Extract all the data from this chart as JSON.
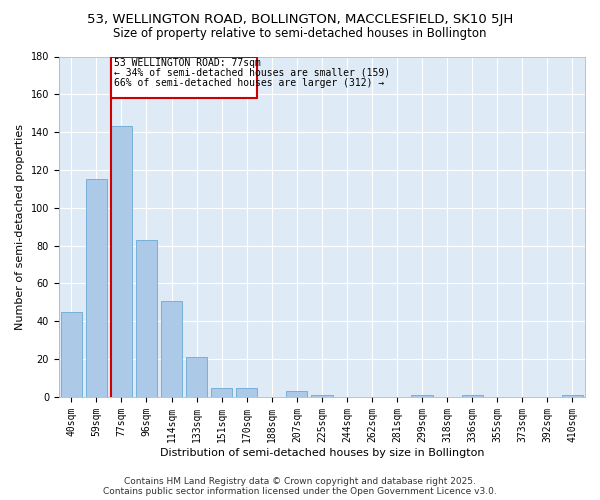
{
  "title": "53, WELLINGTON ROAD, BOLLINGTON, MACCLESFIELD, SK10 5JH",
  "subtitle": "Size of property relative to semi-detached houses in Bollington",
  "xlabel": "Distribution of semi-detached houses by size in Bollington",
  "ylabel": "Number of semi-detached properties",
  "categories": [
    "40sqm",
    "59sqm",
    "77sqm",
    "96sqm",
    "114sqm",
    "133sqm",
    "151sqm",
    "170sqm",
    "188sqm",
    "207sqm",
    "225sqm",
    "244sqm",
    "262sqm",
    "281sqm",
    "299sqm",
    "318sqm",
    "336sqm",
    "355sqm",
    "373sqm",
    "392sqm",
    "410sqm"
  ],
  "values": [
    45,
    115,
    143,
    83,
    51,
    21,
    5,
    5,
    0,
    3,
    1,
    0,
    0,
    0,
    1,
    0,
    1,
    0,
    0,
    0,
    1
  ],
  "bar_color": "#adc9e8",
  "bar_edge_color": "#6aaad4",
  "subject_line_index": 2,
  "subject_label": "53 WELLINGTON ROAD: 77sqm",
  "annotation_line1": "← 34% of semi-detached houses are smaller (159)",
  "annotation_line2": "66% of semi-detached houses are larger (312) →",
  "box_color": "#cc0000",
  "ylim": [
    0,
    180
  ],
  "yticks": [
    0,
    20,
    40,
    60,
    80,
    100,
    120,
    140,
    160,
    180
  ],
  "footer_line1": "Contains HM Land Registry data © Crown copyright and database right 2025.",
  "footer_line2": "Contains public sector information licensed under the Open Government Licence v3.0.",
  "background_color": "#deeaf6",
  "grid_color": "#ffffff",
  "title_fontsize": 9.5,
  "subtitle_fontsize": 8.5,
  "axis_label_fontsize": 8,
  "tick_fontsize": 7,
  "annotation_fontsize": 7,
  "footer_fontsize": 6.5
}
